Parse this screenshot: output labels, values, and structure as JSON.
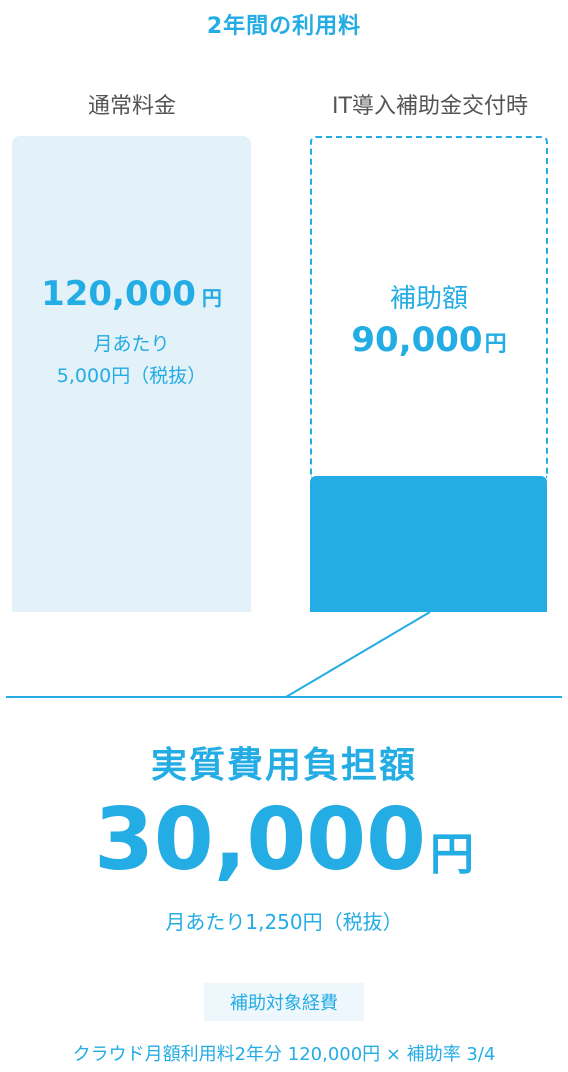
{
  "title": "2年間の利用料",
  "chart_data": {
    "type": "bar",
    "categories": [
      "通常料金",
      "IT導入補助金交付時"
    ],
    "values": [
      120000,
      30000
    ],
    "subsidy_value": 90000,
    "ylim": [
      0,
      120000
    ]
  },
  "normal": {
    "label": "通常料金",
    "amount": "120,000",
    "unit": "円",
    "monthly_line1": "月あたり",
    "monthly_line2": "5,000円（税抜）"
  },
  "subsidy": {
    "label": "IT導入補助金交付時",
    "subsidy_label": "補助額",
    "subsidy_amount": "90,000",
    "unit": "円"
  },
  "actual": {
    "title": "実質費用負担額",
    "amount": "30,000",
    "unit": "円",
    "monthly": "月あたり1,250円（税抜）"
  },
  "badge": "補助対象経費",
  "footer_note": "クラウド月額利用料2年分 120,000円 × 補助率 3/4",
  "colors": {
    "accent": "#24ace4",
    "bar_light": "#e3f1f9",
    "label_gray": "#555555"
  }
}
